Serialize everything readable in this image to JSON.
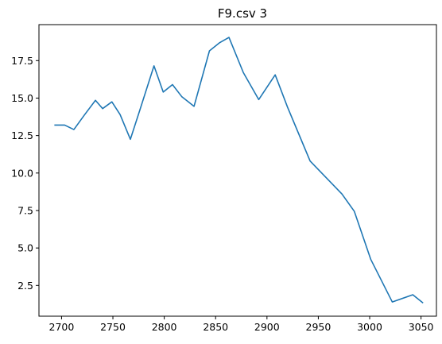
{
  "chart_data": {
    "type": "line",
    "title": "F9.csv 3",
    "xlabel": "",
    "ylabel": "",
    "xlim": [
      2678,
      3065
    ],
    "ylim": [
      0.45,
      19.9
    ],
    "grid": false,
    "line_color": "#1f77b4",
    "x_ticks": [
      2700,
      2750,
      2800,
      2850,
      2900,
      2950,
      3000,
      3050
    ],
    "x_tick_labels": [
      "2700",
      "2750",
      "2800",
      "2850",
      "2900",
      "2950",
      "3000",
      "3050"
    ],
    "y_ticks": [
      2.5,
      5.0,
      7.5,
      10.0,
      12.5,
      15.0,
      17.5
    ],
    "y_tick_labels": [
      "2.5",
      "5.0",
      "7.5",
      "10.0",
      "12.5",
      "15.0",
      "17.5"
    ],
    "series": [
      {
        "x": [
          2693,
          2703,
          2712,
          2722,
          2733,
          2740,
          2749,
          2757,
          2767,
          2776,
          2790,
          2799,
          2808,
          2817,
          2829,
          2844,
          2854,
          2863,
          2877,
          2892,
          2908,
          2920,
          2942,
          2973,
          2985,
          3001,
          3022,
          3042,
          3052
        ],
        "y": [
          13.2,
          13.2,
          12.9,
          13.85,
          14.85,
          14.3,
          14.75,
          13.9,
          12.25,
          14.15,
          17.15,
          15.4,
          15.9,
          15.1,
          14.45,
          18.15,
          18.7,
          19.05,
          16.7,
          14.9,
          16.55,
          14.4,
          10.8,
          8.6,
          7.45,
          4.25,
          1.4,
          1.88,
          1.33
        ]
      }
    ]
  }
}
